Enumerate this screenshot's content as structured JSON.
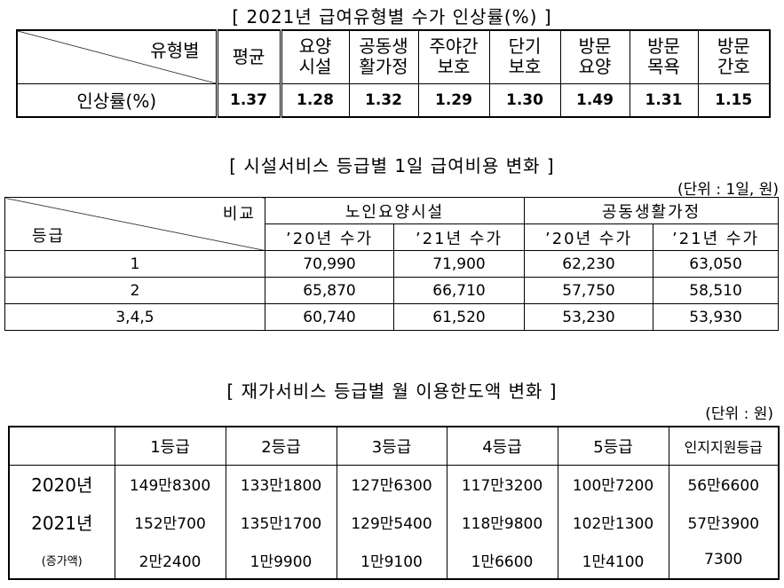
{
  "table1": {
    "title": "[ 2021년 급여유형별 수가 인상률(%) ]",
    "corner": "유형별",
    "headers": [
      "평균",
      "요양\n시설",
      "공동생\n활가정",
      "주야간\n보호",
      "단기\n보호",
      "방문\n요양",
      "방문\n목욕",
      "방문\n간호"
    ],
    "row_label": "인상률(%)",
    "values": [
      "1.37",
      "1.28",
      "1.32",
      "1.29",
      "1.30",
      "1.49",
      "1.31",
      "1.15"
    ]
  },
  "table2": {
    "title": "[ 시설서비스 등급별 1일 급여비용 변화 ]",
    "unit": "(단위 : 1일, 원)",
    "corner_top": "비교",
    "corner_bottom": "등급",
    "groups": [
      "노인요양시설",
      "공동생활가정"
    ],
    "subheaders": [
      "’20년 수가",
      "’21년 수가",
      "’20년 수가",
      "’21년 수가"
    ],
    "rows": [
      [
        "1",
        "70,990",
        "71,900",
        "62,230",
        "63,050"
      ],
      [
        "2",
        "65,870",
        "66,710",
        "57,750",
        "58,510"
      ],
      [
        "3,4,5",
        "60,740",
        "61,520",
        "53,230",
        "53,930"
      ]
    ]
  },
  "table3": {
    "title": "[ 재가서비스 등급별 월 이용한도액 변화 ]",
    "unit": "(단위 : 원)",
    "headers": [
      "1등급",
      "2등급",
      "3등급",
      "4등급",
      "5등급",
      "인지지원등급"
    ],
    "rows": [
      [
        "2020년",
        "149만8300",
        "133만1800",
        "127만6300",
        "117만3200",
        "100만7200",
        "56만6600"
      ],
      [
        "2021년",
        "152만700",
        "135만1700",
        "129만5400",
        "118만9800",
        "102만1300",
        "57만3900"
      ],
      [
        "(증가액)",
        "2만2400",
        "1만9900",
        "1만9100",
        "1만6600",
        "1만4100",
        "7300"
      ]
    ]
  }
}
